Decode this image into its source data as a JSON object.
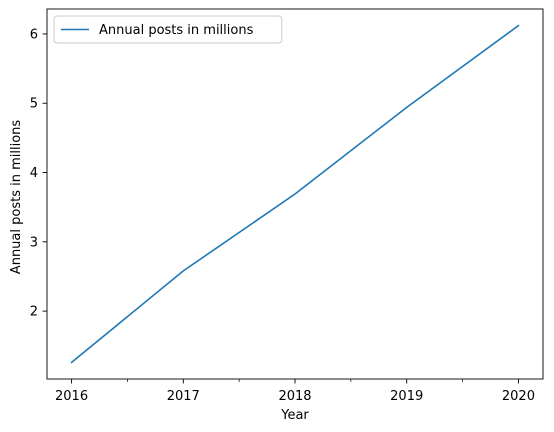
{
  "chart_data": {
    "type": "line",
    "x": [
      2016,
      2017,
      2018,
      2019,
      2020
    ],
    "series": [
      {
        "name": "Annual posts in millions",
        "values": [
          1.26,
          2.58,
          3.69,
          4.94,
          6.12
        ],
        "color": "#1f77b4"
      }
    ],
    "xlabel": "Year",
    "ylabel": "Annual posts in millions",
    "xlim": [
      2015.78,
      2020.22
    ],
    "ylim": [
      1.02,
      6.36
    ],
    "xticks": [
      2016,
      2017,
      2018,
      2019,
      2020
    ],
    "xtick_labels": [
      "2016",
      "2017",
      "2018",
      "2019",
      "2020"
    ],
    "x_minor_ticks": [
      2016.5,
      2017.5,
      2018.5,
      2019.5
    ],
    "yticks": [
      2,
      3,
      4,
      5,
      6
    ],
    "ytick_labels": [
      "2",
      "3",
      "4",
      "5",
      "6"
    ],
    "grid": false,
    "legend": {
      "position": "top-left",
      "entries": [
        "Annual posts in millions"
      ]
    }
  }
}
